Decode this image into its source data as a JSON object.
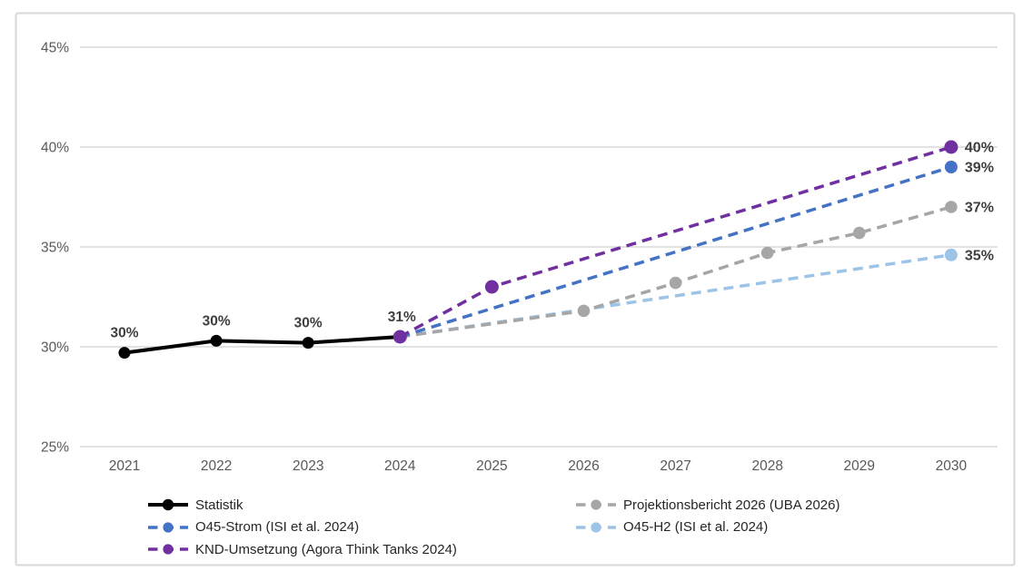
{
  "figure": {
    "background": "#FFFFFF",
    "border_color": "#D7D7D7"
  },
  "chart_data": {
    "type": "line",
    "title": "",
    "xlabel": "",
    "ylabel": "",
    "x_years": [
      2021,
      2022,
      2023,
      2024,
      2025,
      2026,
      2027,
      2028,
      2029,
      2030
    ],
    "ylim": [
      25,
      45
    ],
    "yticks": [
      25,
      30,
      35,
      40,
      45
    ],
    "ytick_suffix": "%",
    "grid": "horizontal",
    "gridline_color": "#D9D9D9",
    "axis_label_color": "#595959",
    "data_label_color": "#3F3F3F",
    "legend_position": "bottom",
    "series": [
      {
        "name": "Statistik",
        "color": "#000000",
        "line_style": "solid",
        "points": [
          {
            "year": 2021,
            "value": 29.7,
            "label": "30%"
          },
          {
            "year": 2022,
            "value": 30.3,
            "label": "30%"
          },
          {
            "year": 2023,
            "value": 30.2,
            "label": "30%"
          },
          {
            "year": 2024,
            "value": 30.5,
            "label": "31%"
          }
        ],
        "markers": [
          2021,
          2022,
          2023,
          2024
        ]
      },
      {
        "name": "O45-Strom (ISI et al. 2024)",
        "color": "#4472C4",
        "line_style": "dashed",
        "points": [
          {
            "year": 2024,
            "value": 30.5
          },
          {
            "year": 2030,
            "value": 39.0
          }
        ],
        "markers": [
          2024,
          2030
        ],
        "end_label": "39%"
      },
      {
        "name": "KND-Umsetzung (Agora Think Tanks 2024)",
        "color": "#7030A0",
        "line_style": "dashed",
        "points": [
          {
            "year": 2024,
            "value": 30.5
          },
          {
            "year": 2025,
            "value": 33.0
          },
          {
            "year": 2030,
            "value": 40.0
          }
        ],
        "markers": [
          2024,
          2025,
          2030
        ],
        "end_label": "40%"
      },
      {
        "name": "Projektionsbericht 2026 (UBA 2026)",
        "color": "#A6A6A6",
        "line_style": "dashed",
        "points": [
          {
            "year": 2024,
            "value": 30.5
          },
          {
            "year": 2026,
            "value": 31.8
          },
          {
            "year": 2027,
            "value": 33.2
          },
          {
            "year": 2028,
            "value": 34.7
          },
          {
            "year": 2029,
            "value": 35.7
          },
          {
            "year": 2030,
            "value": 37.0
          }
        ],
        "markers": [
          2026,
          2027,
          2028,
          2029,
          2030
        ],
        "end_label": "37%"
      },
      {
        "name": "O45-H2 (ISI et al. 2024)",
        "color": "#9DC3E6",
        "line_style": "dashed",
        "points": [
          {
            "year": 2024,
            "value": 30.5
          },
          {
            "year": 2030,
            "value": 34.6
          }
        ],
        "markers": [
          2024,
          2030
        ],
        "end_label": "35%"
      }
    ]
  }
}
